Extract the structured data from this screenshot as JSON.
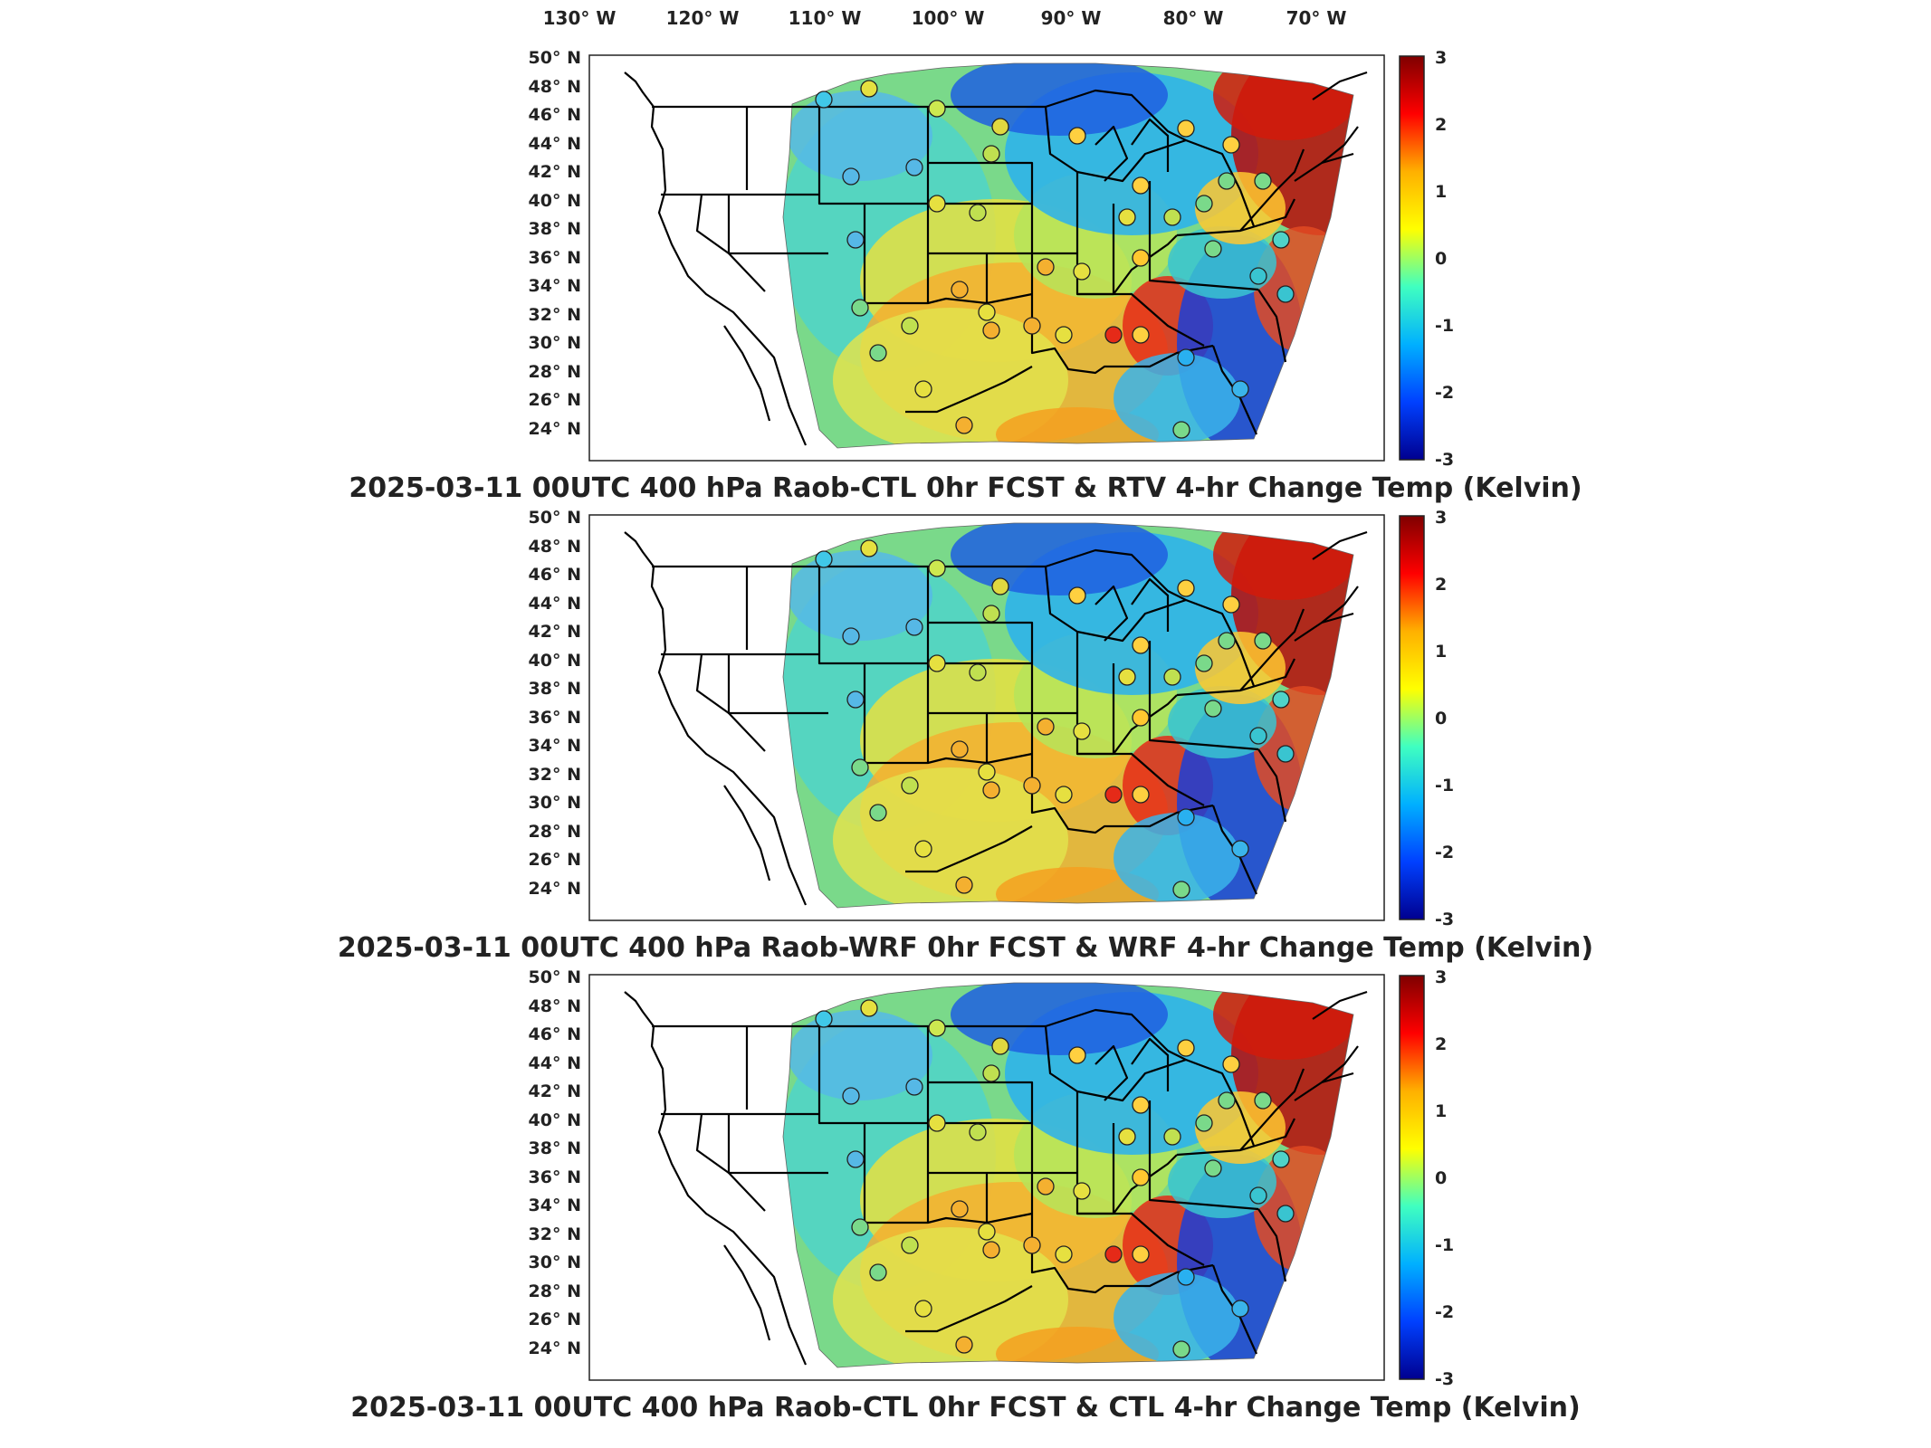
{
  "lon_labels": [
    "130° W",
    "120° W",
    "110° W",
    "100° W",
    "90° W",
    "80° W",
    "70° W"
  ],
  "lat_labels": [
    "50° N",
    "48° N",
    "46° N",
    "44° N",
    "42° N",
    "40° N",
    "38° N",
    "36° N",
    "34° N",
    "32° N",
    "30° N",
    "28° N",
    "26° N",
    "24° N"
  ],
  "colorbar": {
    "ticks": [
      "3",
      "2",
      "1",
      "0",
      "-1",
      "-2",
      "-3"
    ],
    "range": [
      -3,
      3
    ],
    "colors": [
      "#7f0000",
      "#ff0000",
      "#ffb000",
      "#ffff00",
      "#40ffc0",
      "#00b0ff",
      "#0040ff",
      "#00008f"
    ]
  },
  "panels": [
    {
      "title": "2025-03-11 00UTC 400 hPa Raob-CTL 0hr FCST & RTV 4-hr Change Temp (Kelvin)"
    },
    {
      "title": "2025-03-11 00UTC 400 hPa Raob-WRF 0hr FCST & WRF 4-hr Change Temp (Kelvin)"
    },
    {
      "title": "2025-03-11 00UTC 400 hPa Raob-CTL 0hr FCST & CTL 4-hr Change Temp (Kelvin)"
    }
  ]
}
